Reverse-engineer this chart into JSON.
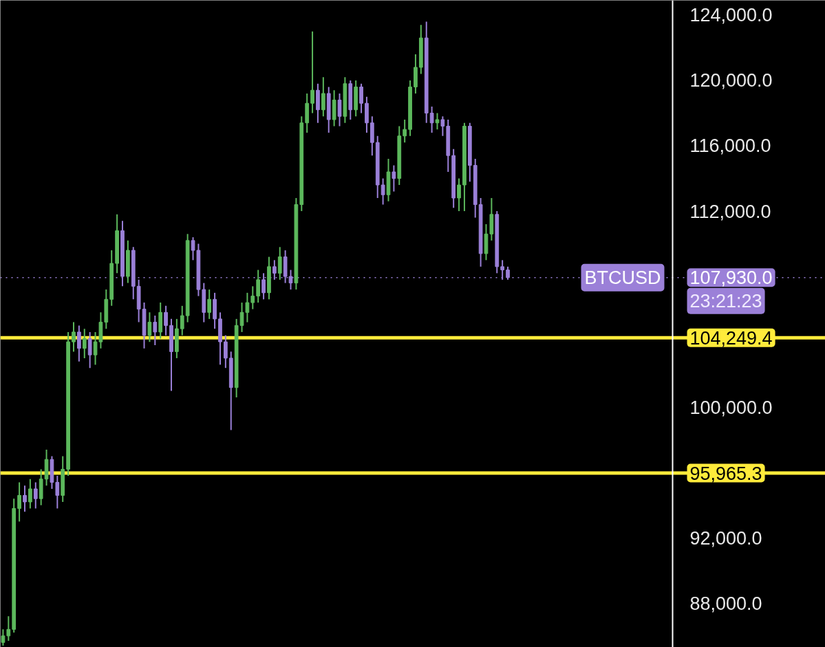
{
  "chart_data": {
    "type": "candlestick",
    "categories": [
      null,
      null,
      null,
      null,
      null,
      null,
      null,
      null,
      null,
      null,
      null,
      null,
      null,
      null,
      null,
      null,
      null,
      null,
      null,
      null,
      null,
      null,
      null,
      null,
      null,
      null,
      null,
      null,
      null,
      null,
      null,
      null,
      null,
      null,
      null,
      null,
      null,
      null,
      null,
      null,
      null,
      null,
      null,
      null,
      null,
      null,
      null,
      null,
      null,
      null,
      null,
      null,
      null,
      null,
      null,
      null,
      null,
      null,
      null,
      null,
      null,
      null,
      null,
      null,
      null,
      null,
      null,
      null,
      null,
      null,
      null,
      null,
      null,
      null,
      null,
      null,
      null,
      null,
      null,
      null,
      null,
      null,
      null,
      null,
      null,
      null,
      null,
      null,
      null,
      null,
      null,
      null,
      null,
      null,
      null,
      null,
      null,
      null,
      null,
      null,
      null,
      null,
      null,
      null,
      null,
      null,
      null,
      null,
      null,
      null,
      null,
      null,
      null,
      null,
      null,
      null,
      null,
      null,
      null,
      null,
      null,
      null,
      null,
      null,
      null,
      null,
      null,
      null,
      null,
      null,
      null,
      null,
      null,
      null,
      null,
      null,
      null,
      null,
      null,
      null,
      null,
      null,
      null,
      null,
      null,
      null,
      null,
      null,
      null,
      null,
      null,
      null
    ],
    "ohlc": [
      [
        85600,
        86400,
        85400,
        86000
      ],
      [
        86000,
        87200,
        85700,
        86400
      ],
      [
        86400,
        94400,
        86200,
        93800
      ],
      [
        93800,
        95400,
        93000,
        94600
      ],
      [
        94600,
        95200,
        93600,
        94200
      ],
      [
        94200,
        95600,
        93800,
        95000
      ],
      [
        95000,
        95400,
        93800,
        94400
      ],
      [
        94400,
        96200,
        94000,
        95600
      ],
      [
        95600,
        97400,
        95200,
        96800
      ],
      [
        96800,
        97000,
        95000,
        95400
      ],
      [
        95400,
        95800,
        93800,
        94600
      ],
      [
        94600,
        97000,
        94200,
        96200
      ],
      [
        96200,
        104600,
        95800,
        104000
      ],
      [
        104000,
        105200,
        103400,
        104600
      ],
      [
        104600,
        105000,
        102800,
        103600
      ],
      [
        103600,
        104800,
        103000,
        104200
      ],
      [
        104200,
        104600,
        102400,
        103200
      ],
      [
        103200,
        104600,
        102600,
        104000
      ],
      [
        104000,
        105800,
        103600,
        105200
      ],
      [
        105200,
        107200,
        104800,
        106600
      ],
      [
        106600,
        109600,
        106200,
        108800
      ],
      [
        108800,
        111800,
        108200,
        110800
      ],
      [
        110800,
        111400,
        107400,
        108000
      ],
      [
        108000,
        110200,
        107600,
        109600
      ],
      [
        109600,
        109800,
        106600,
        107400
      ],
      [
        107400,
        107800,
        105200,
        106000
      ],
      [
        106000,
        106400,
        103600,
        104400
      ],
      [
        104400,
        105800,
        104000,
        105200
      ],
      [
        105200,
        105600,
        103800,
        104600
      ],
      [
        104600,
        106400,
        104200,
        105800
      ],
      [
        105800,
        106200,
        104400,
        105000
      ],
      [
        105000,
        105400,
        101000,
        103400
      ],
      [
        103400,
        105400,
        103000,
        104800
      ],
      [
        104800,
        106200,
        104400,
        105600
      ],
      [
        105600,
        110600,
        105200,
        110200
      ],
      [
        110200,
        110400,
        109000,
        109600
      ],
      [
        109600,
        110000,
        106800,
        107200
      ],
      [
        107200,
        107600,
        105200,
        105800
      ],
      [
        105800,
        107200,
        105400,
        106600
      ],
      [
        106600,
        107000,
        104800,
        105400
      ],
      [
        105400,
        105800,
        102600,
        104000
      ],
      [
        104000,
        104400,
        102400,
        103000
      ],
      [
        103000,
        103400,
        98600,
        101200
      ],
      [
        101200,
        105400,
        100600,
        105000
      ],
      [
        105000,
        106400,
        104600,
        105800
      ],
      [
        105800,
        107000,
        105200,
        106400
      ],
      [
        106400,
        107400,
        106000,
        106800
      ],
      [
        106800,
        108400,
        106400,
        107800
      ],
      [
        107800,
        108200,
        106600,
        107000
      ],
      [
        107000,
        109200,
        106600,
        108600
      ],
      [
        108600,
        109000,
        107800,
        108200
      ],
      [
        108200,
        109800,
        107800,
        109200
      ],
      [
        109200,
        109600,
        107600,
        108000
      ],
      [
        108000,
        108400,
        107200,
        107600
      ],
      [
        107600,
        112800,
        107200,
        112400
      ],
      [
        112400,
        117800,
        112000,
        117400
      ],
      [
        117400,
        119200,
        116800,
        118600
      ],
      [
        118600,
        123000,
        118000,
        119400
      ],
      [
        119400,
        119800,
        117400,
        118200
      ],
      [
        118200,
        120200,
        117800,
        119200
      ],
      [
        119200,
        119600,
        116800,
        117600
      ],
      [
        117600,
        119400,
        117200,
        118800
      ],
      [
        118800,
        119200,
        117200,
        117800
      ],
      [
        117800,
        120200,
        117400,
        119800
      ],
      [
        119800,
        120000,
        117600,
        118200
      ],
      [
        118200,
        120000,
        117800,
        119600
      ],
      [
        119600,
        119800,
        118000,
        118600
      ],
      [
        118600,
        119000,
        116800,
        117400
      ],
      [
        117400,
        117800,
        115400,
        116200
      ],
      [
        116200,
        116600,
        112800,
        113600
      ],
      [
        113600,
        114000,
        112400,
        113000
      ],
      [
        113000,
        115200,
        112600,
        114400
      ],
      [
        114400,
        114800,
        113200,
        114000
      ],
      [
        114000,
        117200,
        113600,
        116600
      ],
      [
        116600,
        117600,
        116200,
        117000
      ],
      [
        117000,
        120000,
        116600,
        119600
      ],
      [
        119600,
        121600,
        119200,
        120800
      ],
      [
        120800,
        123400,
        120400,
        122600
      ],
      [
        122600,
        123600,
        117400,
        118000
      ],
      [
        118000,
        118400,
        116800,
        117400
      ],
      [
        117400,
        118000,
        117000,
        117600
      ],
      [
        117600,
        117800,
        116600,
        117200
      ],
      [
        117200,
        117600,
        114400,
        115400
      ],
      [
        115400,
        115800,
        112200,
        112800
      ],
      [
        112800,
        114000,
        112000,
        113600
      ],
      [
        113600,
        117400,
        112000,
        117200
      ],
      [
        117200,
        117400,
        113800,
        114800
      ],
      [
        114800,
        115200,
        111600,
        112400
      ],
      [
        112400,
        112800,
        108600,
        109400
      ],
      [
        109400,
        111200,
        109000,
        110600
      ],
      [
        110600,
        112800,
        110200,
        111800
      ],
      [
        111800,
        112000,
        108200,
        108600
      ],
      [
        108600,
        109000,
        107800,
        108400
      ],
      [
        108400,
        108600,
        107800,
        107930
      ],
      null,
      null,
      null,
      null,
      null,
      null,
      null,
      null,
      null,
      null,
      null,
      null,
      null,
      null,
      null,
      null,
      null,
      null,
      null,
      null,
      null,
      null,
      null,
      null,
      null,
      null,
      null,
      null,
      null,
      null,
      null,
      null,
      null,
      null,
      null,
      null,
      null,
      null,
      null,
      null,
      null,
      null,
      null,
      null,
      null,
      null,
      null,
      null,
      null,
      null,
      null,
      null,
      null,
      null,
      null,
      null,
      null,
      null
    ],
    "colors": [
      "#5cb85c",
      "#5cb85c",
      "#5cb85c",
      "#5cb85c",
      "#9b80d8",
      "#5cb85c",
      "#9b80d8",
      "#5cb85c",
      "#5cb85c",
      "#9b80d8",
      "#9b80d8",
      "#5cb85c",
      "#5cb85c",
      "#5cb85c",
      "#9b80d8",
      "#5cb85c",
      "#9b80d8",
      "#5cb85c",
      "#5cb85c",
      "#5cb85c",
      "#5cb85c",
      "#5cb85c",
      "#9b80d8",
      "#5cb85c",
      "#9b80d8",
      "#9b80d8",
      "#9b80d8",
      "#5cb85c",
      "#9b80d8",
      "#5cb85c",
      "#9b80d8",
      "#9b80d8",
      "#5cb85c",
      "#5cb85c",
      "#5cb85c",
      "#9b80d8",
      "#9b80d8",
      "#9b80d8",
      "#5cb85c",
      "#9b80d8",
      "#9b80d8",
      "#9b80d8",
      "#9b80d8",
      "#5cb85c",
      "#5cb85c",
      "#5cb85c",
      "#5cb85c",
      "#5cb85c",
      "#9b80d8",
      "#5cb85c",
      "#9b80d8",
      "#5cb85c",
      "#9b80d8",
      "#9b80d8",
      "#5cb85c",
      "#5cb85c",
      "#5cb85c",
      "#5cb85c",
      "#9b80d8",
      "#5cb85c",
      "#9b80d8",
      "#5cb85c",
      "#9b80d8",
      "#5cb85c",
      "#9b80d8",
      "#5cb85c",
      "#9b80d8",
      "#9b80d8",
      "#9b80d8",
      "#9b80d8",
      "#9b80d8",
      "#5cb85c",
      "#9b80d8",
      "#5cb85c",
      "#5cb85c",
      "#5cb85c",
      "#5cb85c",
      "#5cb85c",
      "#9b80d8",
      "#9b80d8",
      "#5cb85c",
      "#9b80d8",
      "#9b80d8",
      "#9b80d8",
      "#5cb85c",
      "#5cb85c",
      "#9b80d8",
      "#9b80d8",
      "#9b80d8",
      "#5cb85c",
      "#5cb85c",
      "#9b80d8",
      "#9b80d8",
      "#9b80d8",
      null,
      null,
      null,
      null,
      null,
      null,
      null,
      null,
      null,
      null,
      null,
      null,
      null,
      null,
      null,
      null,
      null,
      null,
      null,
      null,
      null,
      null,
      null,
      null,
      null,
      null,
      null,
      null,
      null,
      null,
      null,
      null,
      null,
      null,
      null,
      null,
      null,
      null,
      null,
      null,
      null,
      null,
      null,
      null,
      null,
      null,
      null,
      null,
      null,
      null,
      null,
      null,
      null,
      null,
      null,
      null,
      null,
      null
    ],
    "ylim": [
      85300,
      124900
    ],
    "yticks": [
      {
        "value": 88000,
        "label": "88,000.0"
      },
      {
        "value": 92000,
        "label": "92,000.0"
      },
      {
        "value": 100000,
        "label": "100,000.0"
      },
      {
        "value": 112000,
        "label": "112,000.0"
      },
      {
        "value": 116000,
        "label": "116,000.0"
      },
      {
        "value": 120000,
        "label": "120,000.0"
      },
      {
        "value": 124000,
        "label": "124,000.0"
      }
    ],
    "tick_labels": "y",
    "grid": false,
    "ref_lines": [
      {
        "axis": "y",
        "value": 104249.4,
        "label": "104,249.4",
        "color": "#ffeb3b",
        "line_style": "solid"
      },
      {
        "axis": "y",
        "value": 95965.3,
        "label": "95,965.3",
        "color": "#ffeb3b",
        "line_style": "solid"
      },
      {
        "axis": "y",
        "value": 107930,
        "label": "107,930.0",
        "color": "#9b80d8",
        "line_style": "dotted"
      }
    ],
    "annotations": [
      "BTCUSD",
      "23:21:23"
    ]
  }
}
